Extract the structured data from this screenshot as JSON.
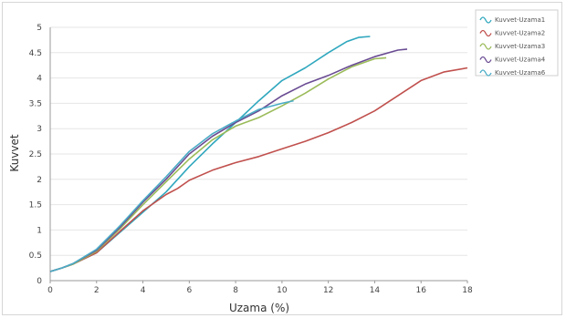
{
  "chart_data": {
    "type": "line",
    "title": "",
    "xlabel": "Uzama (%)",
    "ylabel": "Kuvvet",
    "xlim": [
      0,
      18
    ],
    "ylim": [
      0,
      5
    ],
    "xticks": [
      0,
      2,
      4,
      6,
      8,
      10,
      12,
      14,
      16,
      18
    ],
    "yticks": [
      0,
      0.5,
      1,
      1.5,
      2,
      2.5,
      3,
      3.5,
      4,
      4.5,
      5
    ],
    "grid": "horizontal",
    "legend_position": "top-right",
    "series": [
      {
        "name": "Kuvvet-Uzama1",
        "color": "#2fa7be",
        "points": [
          [
            0,
            0.18
          ],
          [
            0.5,
            0.25
          ],
          [
            1,
            0.33
          ],
          [
            2,
            0.55
          ],
          [
            3,
            0.95
          ],
          [
            4,
            1.35
          ],
          [
            5,
            1.75
          ],
          [
            6,
            2.25
          ],
          [
            7,
            2.7
          ],
          [
            8,
            3.12
          ],
          [
            9,
            3.55
          ],
          [
            10,
            3.95
          ],
          [
            11,
            4.2
          ],
          [
            12,
            4.5
          ],
          [
            12.8,
            4.72
          ],
          [
            13.3,
            4.8
          ],
          [
            13.8,
            4.82
          ]
        ]
      },
      {
        "name": "Kuvvet-Uzama2",
        "color": "#c0504d",
        "points": [
          [
            0,
            0.18
          ],
          [
            0.5,
            0.25
          ],
          [
            1,
            0.33
          ],
          [
            2,
            0.55
          ],
          [
            3,
            0.97
          ],
          [
            4,
            1.38
          ],
          [
            5,
            1.7
          ],
          [
            5.5,
            1.82
          ],
          [
            6,
            1.98
          ],
          [
            7,
            2.18
          ],
          [
            8,
            2.33
          ],
          [
            9,
            2.45
          ],
          [
            10,
            2.6
          ],
          [
            11,
            2.75
          ],
          [
            12,
            2.92
          ],
          [
            13,
            3.12
          ],
          [
            14,
            3.35
          ],
          [
            15,
            3.65
          ],
          [
            16,
            3.95
          ],
          [
            17,
            4.12
          ],
          [
            18,
            4.2
          ]
        ]
      },
      {
        "name": "Kuvvet-Uzama3",
        "color": "#9bbb59",
        "points": [
          [
            0,
            0.18
          ],
          [
            0.5,
            0.25
          ],
          [
            1,
            0.33
          ],
          [
            2,
            0.58
          ],
          [
            3,
            1.02
          ],
          [
            4,
            1.5
          ],
          [
            5,
            1.95
          ],
          [
            6,
            2.4
          ],
          [
            7,
            2.78
          ],
          [
            8,
            3.05
          ],
          [
            9,
            3.22
          ],
          [
            10,
            3.45
          ],
          [
            11,
            3.7
          ],
          [
            12,
            3.98
          ],
          [
            13,
            4.22
          ],
          [
            14,
            4.38
          ],
          [
            14.5,
            4.4
          ]
        ]
      },
      {
        "name": "Kuvvet-Uzama4",
        "color": "#6a4c93",
        "points": [
          [
            0,
            0.18
          ],
          [
            0.5,
            0.25
          ],
          [
            1,
            0.34
          ],
          [
            2,
            0.6
          ],
          [
            3,
            1.05
          ],
          [
            4,
            1.55
          ],
          [
            5,
            2.0
          ],
          [
            6,
            2.5
          ],
          [
            7,
            2.85
          ],
          [
            8,
            3.12
          ],
          [
            9,
            3.35
          ],
          [
            10,
            3.65
          ],
          [
            11,
            3.88
          ],
          [
            12,
            4.05
          ],
          [
            13,
            4.25
          ],
          [
            14,
            4.42
          ],
          [
            15,
            4.55
          ],
          [
            15.4,
            4.57
          ]
        ]
      },
      {
        "name": "Kuvvet-Uzama6",
        "color": "#4aacc6",
        "points": [
          [
            0,
            0.18
          ],
          [
            0.5,
            0.25
          ],
          [
            1,
            0.34
          ],
          [
            2,
            0.62
          ],
          [
            3,
            1.08
          ],
          [
            4,
            1.58
          ],
          [
            5,
            2.05
          ],
          [
            6,
            2.55
          ],
          [
            7,
            2.9
          ],
          [
            8,
            3.15
          ],
          [
            9,
            3.38
          ],
          [
            10,
            3.5
          ],
          [
            10.5,
            3.55
          ]
        ]
      }
    ]
  }
}
